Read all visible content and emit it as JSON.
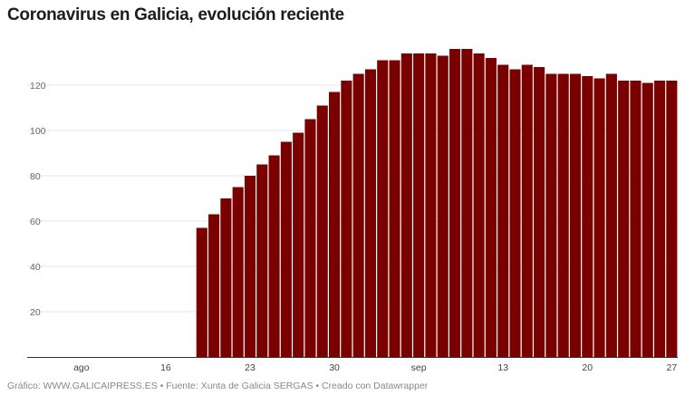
{
  "title": "Coronavirus en Galicia, evolución reciente",
  "footer": "Gráfico: WWW.GALICAIPRESS.ES • Fuente: Xunta de Galicia SERGAS • Creado con Datawrapper",
  "chart_data": {
    "type": "bar",
    "title": "Coronavirus en Galicia, evolución reciente",
    "xlabel": "",
    "ylabel": "",
    "bar_color": "#7a0000",
    "grid": true,
    "ylim": [
      0,
      140
    ],
    "yticks": [
      20,
      40,
      60,
      80,
      100,
      120
    ],
    "x_range": [
      "2020-08-05",
      "2020-09-27"
    ],
    "xticks": [
      {
        "date": "2020-08-09",
        "label": "ago"
      },
      {
        "date": "2020-08-16",
        "label": "16"
      },
      {
        "date": "2020-08-23",
        "label": "23"
      },
      {
        "date": "2020-08-30",
        "label": "30"
      },
      {
        "date": "2020-09-06",
        "label": "sep"
      },
      {
        "date": "2020-09-13",
        "label": "13"
      },
      {
        "date": "2020-09-20",
        "label": "20"
      },
      {
        "date": "2020-09-27",
        "label": "27"
      }
    ],
    "first_date": "2020-08-19",
    "values": [
      57,
      63,
      70,
      75,
      80,
      85,
      89,
      95,
      99,
      105,
      111,
      117,
      122,
      125,
      127,
      131,
      131,
      134,
      134,
      134,
      133,
      136,
      136,
      134,
      132,
      129,
      127,
      129,
      128,
      125,
      125,
      125,
      124,
      123,
      125,
      122,
      122,
      121,
      122,
      122
    ]
  }
}
